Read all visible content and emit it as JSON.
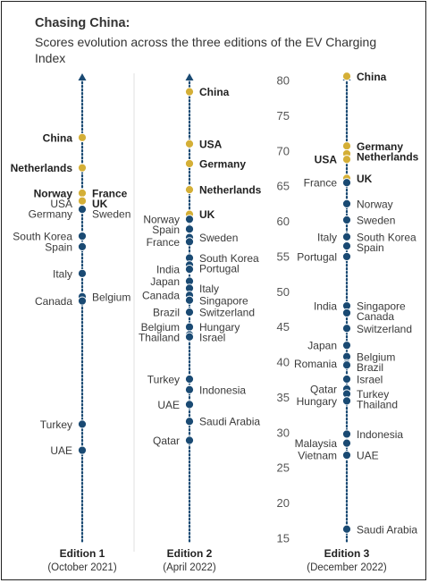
{
  "chart_data": {
    "type": "scatter",
    "title": "Chasing China:",
    "subtitle": "Scores evolution across the three editions of the EV Charging Index",
    "y_ticks": [
      80,
      75,
      70,
      65,
      60,
      55,
      50,
      45,
      40,
      35,
      30,
      25,
      20,
      15
    ],
    "ylim": [
      15,
      81
    ],
    "colors": {
      "highlight": "#d4af37",
      "default": "#1a4a73",
      "axis_text": "#555555"
    },
    "editions": [
      {
        "name": "Edition 1",
        "subtitle": "(October 2021)",
        "points": [
          {
            "country": "China",
            "value": 71.9,
            "side": "left",
            "bold": true,
            "highlight": true
          },
          {
            "country": "Netherlands",
            "value": 67.6,
            "side": "left",
            "bold": true,
            "highlight": true
          },
          {
            "country": "Norway",
            "value": 64.0,
            "side": "left",
            "bold": true,
            "highlight": true
          },
          {
            "country": "France",
            "value": 64.0,
            "side": "right",
            "bold": true,
            "highlight": true
          },
          {
            "country": "USA",
            "value": 62.9,
            "side": "left",
            "bold": false,
            "highlight": true
          },
          {
            "country": "UK",
            "value": 62.9,
            "side": "right",
            "bold": true,
            "highlight": true
          },
          {
            "country": "Germany",
            "value": 61.7,
            "side": "left",
            "bold": false,
            "highlight": false
          },
          {
            "country": "Sweden",
            "value": 61.7,
            "side": "right",
            "bold": false,
            "highlight": false
          },
          {
            "country": "South Korea",
            "value": 57.9,
            "side": "left",
            "bold": false,
            "highlight": false
          },
          {
            "country": "Spain",
            "value": 56.4,
            "side": "left",
            "bold": false,
            "highlight": false
          },
          {
            "country": "Italy",
            "value": 52.6,
            "side": "left",
            "bold": false,
            "highlight": false
          },
          {
            "country": "Belgium",
            "value": 49.3,
            "side": "right",
            "bold": false,
            "highlight": false
          },
          {
            "country": "Canada",
            "value": 48.7,
            "side": "left",
            "bold": false,
            "highlight": false
          },
          {
            "country": "Turkey",
            "value": 31.2,
            "side": "left",
            "bold": false,
            "highlight": false
          },
          {
            "country": "UAE",
            "value": 27.5,
            "side": "left",
            "bold": false,
            "highlight": false
          }
        ]
      },
      {
        "name": "Edition 2",
        "subtitle": "(April 2022)",
        "points": [
          {
            "country": "China",
            "value": 78.4,
            "side": "right",
            "bold": true,
            "highlight": true
          },
          {
            "country": "USA",
            "value": 71.0,
            "side": "right",
            "bold": true,
            "highlight": true
          },
          {
            "country": "Germany",
            "value": 68.2,
            "side": "right",
            "bold": true,
            "highlight": true
          },
          {
            "country": "Netherlands",
            "value": 64.5,
            "side": "right",
            "bold": true,
            "highlight": true
          },
          {
            "country": "UK",
            "value": 61.0,
            "side": "right",
            "bold": true,
            "highlight": true
          },
          {
            "country": "Norway",
            "value": 60.3,
            "side": "left",
            "bold": false,
            "highlight": false
          },
          {
            "country": "Spain",
            "value": 58.9,
            "side": "left",
            "bold": false,
            "highlight": false
          },
          {
            "country": "Sweden",
            "value": 57.7,
            "side": "right",
            "bold": false,
            "highlight": false
          },
          {
            "country": "France",
            "value": 57.1,
            "side": "left",
            "bold": false,
            "highlight": false
          },
          {
            "country": "South Korea",
            "value": 54.8,
            "side": "right",
            "bold": false,
            "highlight": false
          },
          {
            "country": "Portugal",
            "value": 53.8,
            "side": "right",
            "bold": false,
            "highlight": false
          },
          {
            "country": "India",
            "value": 53.2,
            "side": "left",
            "bold": false,
            "highlight": false
          },
          {
            "country": "Japan",
            "value": 51.5,
            "side": "left",
            "bold": false,
            "highlight": false
          },
          {
            "country": "Italy",
            "value": 50.5,
            "side": "right",
            "bold": false,
            "highlight": false
          },
          {
            "country": "Canada",
            "value": 49.5,
            "side": "left",
            "bold": false,
            "highlight": false
          },
          {
            "country": "Singapore",
            "value": 48.8,
            "side": "right",
            "bold": false,
            "highlight": false
          },
          {
            "country": "Brazil",
            "value": 47.1,
            "side": "left",
            "bold": false,
            "highlight": false
          },
          {
            "country": "Switzerland",
            "value": 47.1,
            "side": "right",
            "bold": false,
            "highlight": false
          },
          {
            "country": "Belgium",
            "value": 45.0,
            "side": "left",
            "bold": false,
            "highlight": false
          },
          {
            "country": "Hungary",
            "value": 45.0,
            "side": "right",
            "bold": false,
            "highlight": false
          },
          {
            "country": "Thailand",
            "value": 43.9,
            "side": "left",
            "bold": false,
            "highlight": false
          },
          {
            "country": "Israel",
            "value": 43.6,
            "side": "right",
            "bold": false,
            "highlight": false
          },
          {
            "country": "Turkey",
            "value": 37.6,
            "side": "left",
            "bold": false,
            "highlight": false
          },
          {
            "country": "Indonesia",
            "value": 36.1,
            "side": "right",
            "bold": false,
            "highlight": false
          },
          {
            "country": "UAE",
            "value": 34.0,
            "side": "left",
            "bold": false,
            "highlight": false
          },
          {
            "country": "Saudi Arabia",
            "value": 31.6,
            "side": "right",
            "bold": false,
            "highlight": false
          },
          {
            "country": "Qatar",
            "value": 28.9,
            "side": "left",
            "bold": false,
            "highlight": false
          }
        ]
      },
      {
        "name": "Edition 3",
        "subtitle": "(December 2022)",
        "points": [
          {
            "country": "China",
            "value": 80.6,
            "side": "right",
            "bold": true,
            "highlight": true
          },
          {
            "country": "Germany",
            "value": 70.7,
            "side": "right",
            "bold": true,
            "highlight": true
          },
          {
            "country": "Netherlands",
            "value": 69.6,
            "side": "right",
            "bold": true,
            "highlight": true
          },
          {
            "country": "USA",
            "value": 68.8,
            "side": "left",
            "bold": true,
            "highlight": true
          },
          {
            "country": "UK",
            "value": 66.1,
            "side": "right",
            "bold": true,
            "highlight": true
          },
          {
            "country": "France",
            "value": 65.5,
            "side": "left",
            "bold": false,
            "highlight": false
          },
          {
            "country": "Norway",
            "value": 62.5,
            "side": "right",
            "bold": false,
            "highlight": false
          },
          {
            "country": "Sweden",
            "value": 60.2,
            "side": "right",
            "bold": false,
            "highlight": false
          },
          {
            "country": "Italy",
            "value": 57.8,
            "side": "left",
            "bold": false,
            "highlight": false
          },
          {
            "country": "South Korea",
            "value": 57.8,
            "side": "right",
            "bold": false,
            "highlight": false
          },
          {
            "country": "Spain",
            "value": 56.5,
            "side": "right",
            "bold": false,
            "highlight": false
          },
          {
            "country": "Portugal",
            "value": 55.0,
            "side": "left",
            "bold": false,
            "highlight": false
          },
          {
            "country": "India",
            "value": 48.0,
            "side": "left",
            "bold": false,
            "highlight": false
          },
          {
            "country": "Singapore",
            "value": 48.0,
            "side": "right",
            "bold": false,
            "highlight": false
          },
          {
            "country": "Canada",
            "value": 47.0,
            "side": "right",
            "bold": false,
            "highlight": false
          },
          {
            "country": "Switzerland",
            "value": 44.8,
            "side": "right",
            "bold": false,
            "highlight": false
          },
          {
            "country": "Japan",
            "value": 42.4,
            "side": "left",
            "bold": false,
            "highlight": false
          },
          {
            "country": "Belgium",
            "value": 40.8,
            "side": "right",
            "bold": false,
            "highlight": false
          },
          {
            "country": "Romania",
            "value": 39.8,
            "side": "left",
            "bold": false,
            "highlight": false
          },
          {
            "country": "Brazil",
            "value": 39.6,
            "side": "right",
            "bold": false,
            "highlight": false
          },
          {
            "country": "Israel",
            "value": 37.6,
            "side": "right",
            "bold": false,
            "highlight": false
          },
          {
            "country": "Qatar",
            "value": 36.2,
            "side": "left",
            "bold": false,
            "highlight": false
          },
          {
            "country": "Turkey",
            "value": 35.5,
            "side": "right",
            "bold": false,
            "highlight": false
          },
          {
            "country": "Hungary",
            "value": 34.5,
            "side": "left",
            "bold": false,
            "highlight": false
          },
          {
            "country": "Thailand",
            "value": 34.5,
            "side": "right",
            "bold": false,
            "highlight": false
          },
          {
            "country": "Indonesia",
            "value": 29.8,
            "side": "right",
            "bold": false,
            "highlight": false
          },
          {
            "country": "Malaysia",
            "value": 28.5,
            "side": "left",
            "bold": false,
            "highlight": false
          },
          {
            "country": "Vietnam",
            "value": 26.8,
            "side": "left",
            "bold": false,
            "highlight": false
          },
          {
            "country": "UAE",
            "value": 26.8,
            "side": "right",
            "bold": false,
            "highlight": false
          },
          {
            "country": "Saudi Arabia",
            "value": 16.3,
            "side": "right",
            "bold": false,
            "highlight": false
          }
        ]
      }
    ]
  }
}
